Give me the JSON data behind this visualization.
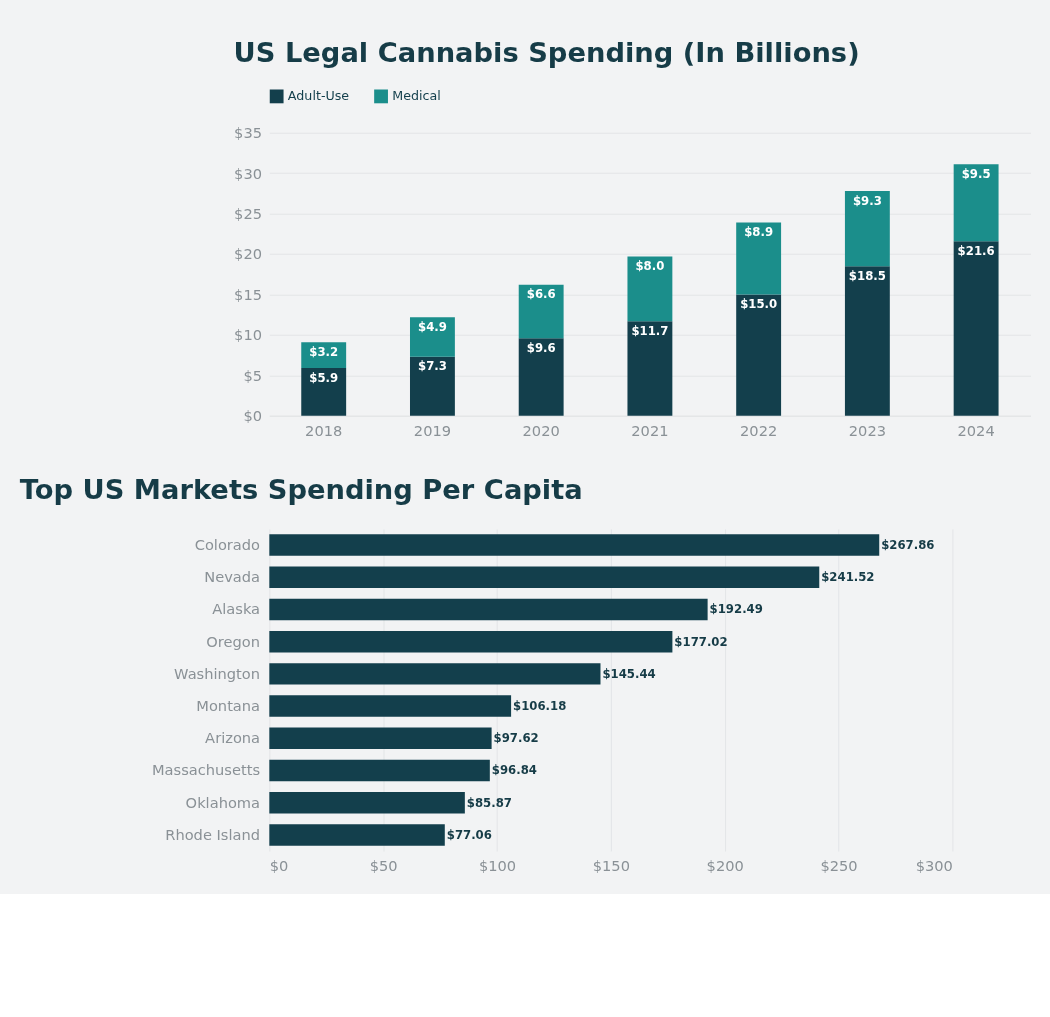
{
  "chart_data": [
    {
      "type": "bar",
      "title": "US Legal Cannabis Spending (In Billions)",
      "stacked": true,
      "legend": "top left",
      "grid": "y",
      "categories": [
        "2018",
        "2019",
        "2020",
        "2021",
        "2022",
        "2023",
        "2024"
      ],
      "series": [
        {
          "name": "Adult-Use",
          "color": "#133f4c",
          "values": [
            5.9,
            7.3,
            9.6,
            11.7,
            15.0,
            18.5,
            21.6
          ],
          "value_labels": [
            "$5.9",
            "$7.3",
            "$9.6",
            "$11.7",
            "$15.0",
            "$18.5",
            "$21.6"
          ]
        },
        {
          "name": "Medical",
          "color": "#1b8e8b",
          "values": [
            3.2,
            4.9,
            6.6,
            8.0,
            8.9,
            9.3,
            9.5
          ],
          "value_labels": [
            "$3.2",
            "$4.9",
            "$6.6",
            "$8.0",
            "$8.9",
            "$9.3",
            "$9.5"
          ]
        }
      ],
      "ylim": [
        0,
        35
      ],
      "yticks": [
        {
          "value": 0,
          "label": "$0"
        },
        {
          "value": 5,
          "label": "$5"
        },
        {
          "value": 10,
          "label": "$10"
        },
        {
          "value": 15,
          "label": "$15"
        },
        {
          "value": 20,
          "label": "$20"
        },
        {
          "value": 25,
          "label": "$25"
        },
        {
          "value": 30,
          "label": "$30"
        },
        {
          "value": 35,
          "label": "$35"
        }
      ]
    },
    {
      "type": "bar",
      "title": "Top US Markets Spending Per Capita",
      "orientation": "horizontal",
      "grid": "x",
      "color": "#133f4c",
      "categories": [
        "Colorado",
        "Nevada",
        "Alaska",
        "Oregon",
        "Washington",
        "Montana",
        "Arizona",
        "Massachusetts",
        "Oklahoma",
        "Rhode Island"
      ],
      "values": [
        267.86,
        241.52,
        192.49,
        177.02,
        145.44,
        106.18,
        97.62,
        96.84,
        85.87,
        77.06
      ],
      "value_labels": [
        "$267.86",
        "$241.52",
        "$192.49",
        "$177.02",
        "$145.44",
        "$106.18",
        "$97.62",
        "$96.84",
        "$85.87",
        "$77.06"
      ],
      "xlim": [
        0,
        300
      ],
      "xticks": [
        {
          "value": 0,
          "label": "$0"
        },
        {
          "value": 50,
          "label": "$50"
        },
        {
          "value": 100,
          "label": "$100"
        },
        {
          "value": 150,
          "label": "$150"
        },
        {
          "value": 200,
          "label": "$200"
        },
        {
          "value": 250,
          "label": "$250"
        },
        {
          "value": 300,
          "label": "$300"
        }
      ]
    }
  ]
}
